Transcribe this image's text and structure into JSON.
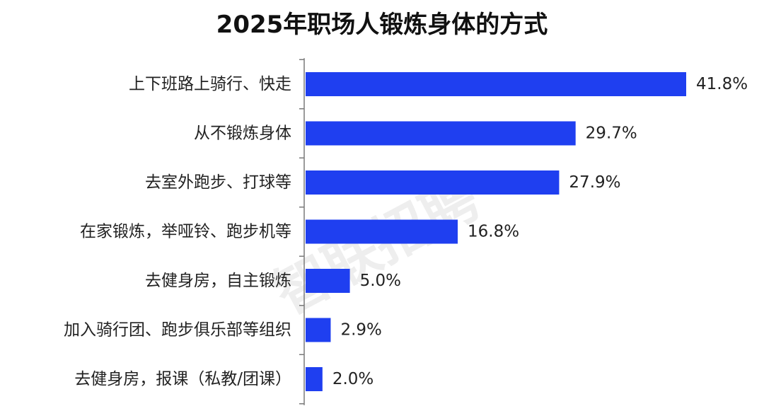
{
  "watermark_text": "智联招聘",
  "colors": {
    "bar": "#1f3ff0",
    "axis": "#7a7a7a",
    "text": "#222222",
    "background": "#ffffff"
  },
  "chart_data": {
    "type": "bar",
    "orientation": "horizontal",
    "title": "2025年职场人锻炼身体的方式",
    "xlabel": "",
    "ylabel": "",
    "grid": false,
    "legend": "none",
    "value_unit": "%",
    "xlim": [
      0,
      41.8
    ],
    "categories": [
      "上下班路上骑行、快走",
      "从不锻炼身体",
      "去室外跑步、打球等",
      "在家锻炼，举哑铃、跑步机等",
      "去健身房，自主锻炼",
      "加入骑行团、跑步俱乐部等组织",
      "去健身房，报课（私教/团课）"
    ],
    "values": [
      41.8,
      29.7,
      27.9,
      16.8,
      5.0,
      2.9,
      2.0
    ],
    "value_labels": [
      "41.8%",
      "29.7%",
      "27.9%",
      "16.8%",
      "5.0%",
      "2.9%",
      "2.0%"
    ]
  }
}
